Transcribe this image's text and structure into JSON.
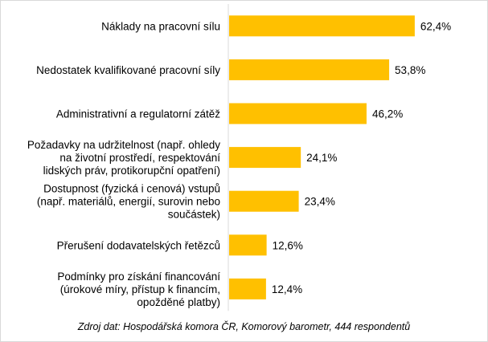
{
  "chart_data": {
    "type": "bar",
    "orientation": "horizontal",
    "categories": [
      [
        "Náklady na pracovní sílu"
      ],
      [
        "Nedostatek kvalifikované pracovní síly"
      ],
      [
        "Administrativní a regulatorní zátěž"
      ],
      [
        "Požadavky na udržitelnost (např. ohledy",
        "na životní prostředí, respektování",
        "lidských práv, protikorupční opatření)"
      ],
      [
        "Dostupnost (fyzická i cenová) vstupů",
        "(např. materiálů, energií, surovin nebo",
        "součástek)"
      ],
      [
        "Přerušení dodavatelských řetězců"
      ],
      [
        "Podmínky pro získání financování",
        "(úrokové míry, přístup k financím,",
        "opožděné platby)"
      ]
    ],
    "values": [
      62.4,
      53.8,
      46.2,
      24.1,
      23.4,
      12.6,
      12.4
    ],
    "value_labels": [
      "62,4%",
      "53,8%",
      "46,2%",
      "24,1%",
      "23,4%",
      "12,6%",
      "12,4%"
    ],
    "xlim": [
      0,
      100
    ],
    "bar_color": "#FFC000",
    "grid": false,
    "legend": "none"
  },
  "source_note": "Zdroj dat: Hospodářská komora ČR, Komorový barometr, 444 respondentů"
}
